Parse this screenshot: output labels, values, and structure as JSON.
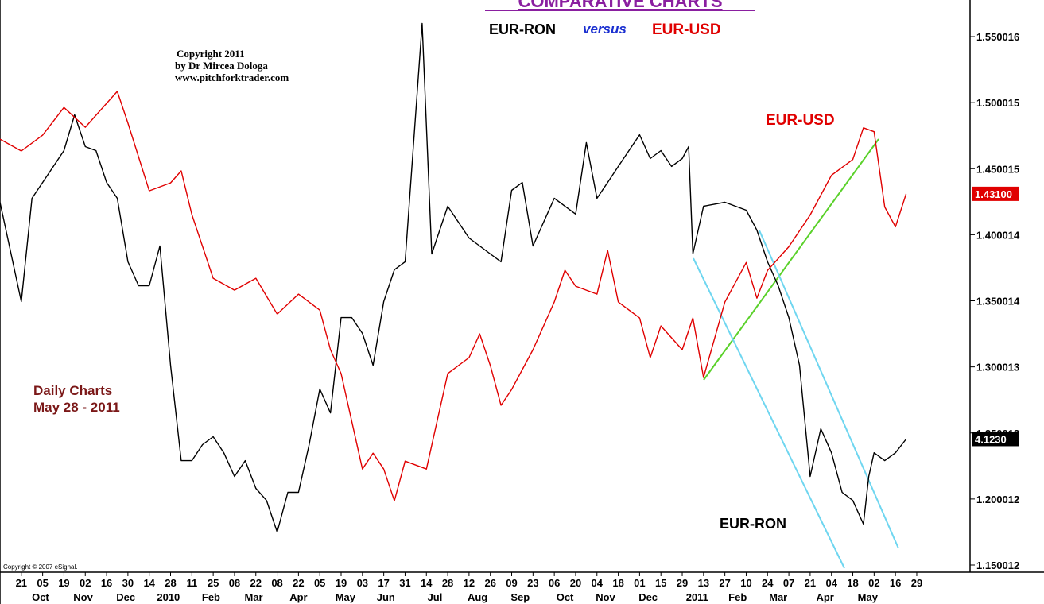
{
  "chart_data": {
    "type": "line",
    "title": "COMPARATIVE CHARTS",
    "subtitle": "versus",
    "copyright": [
      "Copyright 2011",
      "by Dr Mircea Dologa",
      "www.pitchforktrader.com"
    ],
    "note": [
      "Daily Charts",
      "May 28 - 2011"
    ],
    "source": "Copyright © 2007 eSignal.",
    "xlim": [
      -1,
      44.5
    ],
    "ylim": [
      1.1446,
      1.5777
    ],
    "y2lim": [
      4.049,
      4.367
    ],
    "yticks": [
      1.150012,
      1.200012,
      1.250013,
      1.300013,
      1.350014,
      1.400014,
      1.450015,
      1.500015,
      1.550016
    ],
    "xticks": [
      {
        "value": 0,
        "label": "21"
      },
      {
        "value": 1,
        "label": "05"
      },
      {
        "value": 2,
        "label": "19"
      },
      {
        "value": 3,
        "label": "02"
      },
      {
        "value": 4,
        "label": "16"
      },
      {
        "value": 5,
        "label": "30"
      },
      {
        "value": 6,
        "label": "14"
      },
      {
        "value": 7,
        "label": "28"
      },
      {
        "value": 8,
        "label": "11"
      },
      {
        "value": 9,
        "label": "25"
      },
      {
        "value": 10,
        "label": "08"
      },
      {
        "value": 11,
        "label": "22"
      },
      {
        "value": 12,
        "label": "08"
      },
      {
        "value": 13,
        "label": "22"
      },
      {
        "value": 14,
        "label": "05"
      },
      {
        "value": 15,
        "label": "19"
      },
      {
        "value": 16,
        "label": "03"
      },
      {
        "value": 17,
        "label": "17"
      },
      {
        "value": 18,
        "label": "31"
      },
      {
        "value": 19,
        "label": "14"
      },
      {
        "value": 20,
        "label": "28"
      },
      {
        "value": 21,
        "label": "12"
      },
      {
        "value": 22,
        "label": "26"
      },
      {
        "value": 23,
        "label": "09"
      },
      {
        "value": 24,
        "label": "23"
      },
      {
        "value": 25,
        "label": "06"
      },
      {
        "value": 26,
        "label": "20"
      },
      {
        "value": 27,
        "label": "04"
      },
      {
        "value": 28,
        "label": "18"
      },
      {
        "value": 29,
        "label": "01"
      },
      {
        "value": 30,
        "label": "15"
      },
      {
        "value": 31,
        "label": "29"
      },
      {
        "value": 32,
        "label": "13"
      },
      {
        "value": 33,
        "label": "27"
      },
      {
        "value": 34,
        "label": "10"
      },
      {
        "value": 35,
        "label": "24"
      },
      {
        "value": 36,
        "label": "07"
      },
      {
        "value": 37,
        "label": "21"
      },
      {
        "value": 38,
        "label": "04"
      },
      {
        "value": 39,
        "label": "18"
      },
      {
        "value": 40,
        "label": "02"
      },
      {
        "value": 41,
        "label": "16"
      },
      {
        "value": 42,
        "label": "29"
      }
    ],
    "month_labels": [
      {
        "value": 0.9,
        "label": "Oct"
      },
      {
        "value": 2.9,
        "label": "Nov"
      },
      {
        "value": 4.9,
        "label": "Dec"
      },
      {
        "value": 6.9,
        "label": "2010"
      },
      {
        "value": 8.9,
        "label": "Feb"
      },
      {
        "value": 10.9,
        "label": "Mar"
      },
      {
        "value": 13.0,
        "label": "Apr"
      },
      {
        "value": 15.2,
        "label": "May"
      },
      {
        "value": 17.1,
        "label": "Jun"
      },
      {
        "value": 19.4,
        "label": "Jul"
      },
      {
        "value": 21.4,
        "label": "Aug"
      },
      {
        "value": 23.4,
        "label": "Sep"
      },
      {
        "value": 25.5,
        "label": "Oct"
      },
      {
        "value": 27.4,
        "label": "Nov"
      },
      {
        "value": 29.4,
        "label": "Dec"
      },
      {
        "value": 31.7,
        "label": "2011"
      },
      {
        "value": 33.6,
        "label": "Feb"
      },
      {
        "value": 35.5,
        "label": "Mar"
      },
      {
        "value": 37.7,
        "label": "Apr"
      },
      {
        "value": 39.7,
        "label": "May"
      }
    ],
    "series": [
      {
        "name": "EUR-RON",
        "color": "#000000",
        "axis": "y2",
        "last_value_label": "4.1230",
        "x": [
          -1,
          0,
          0.5,
          1,
          2,
          2.5,
          3,
          3.5,
          4,
          4.5,
          5,
          5.5,
          6,
          6.5,
          7,
          7.5,
          8,
          8.5,
          9,
          9.5,
          10,
          10.5,
          11,
          11.5,
          12,
          12.5,
          13,
          13.5,
          14,
          14.5,
          15,
          15.5,
          16,
          16.5,
          17,
          17.5,
          18,
          18.8,
          19.25,
          20,
          21,
          22,
          22.5,
          23,
          23.5,
          24,
          25,
          26,
          26.5,
          27,
          27.5,
          28,
          28.5,
          29,
          29.5,
          30,
          30.5,
          31,
          31.3,
          31.5,
          32,
          33,
          34,
          34.5,
          35,
          35.5,
          36,
          36.5,
          37,
          37.5,
          38,
          38.5,
          39,
          39.5,
          39.75,
          40,
          40.5,
          41,
          41.5
        ],
        "values": [
          4.2546,
          4.1994,
          4.2568,
          4.2656,
          4.2833,
          4.3032,
          4.2855,
          4.2833,
          4.2656,
          4.2568,
          4.2215,
          4.2082,
          4.2082,
          4.2303,
          4.164,
          4.111,
          4.111,
          4.1199,
          4.1243,
          4.1154,
          4.1022,
          4.111,
          4.0956,
          4.0889,
          4.0713,
          4.0934,
          4.0934,
          4.1199,
          4.1508,
          4.1375,
          4.1905,
          4.1905,
          4.1817,
          4.164,
          4.1994,
          4.2171,
          4.2215,
          4.354,
          4.2259,
          4.2524,
          4.2347,
          4.2259,
          4.2215,
          4.2612,
          4.2656,
          4.2303,
          4.2568,
          4.248,
          4.2877,
          4.2568,
          4.2656,
          4.2745,
          4.2833,
          4.2921,
          4.2789,
          4.2833,
          4.2745,
          4.2789,
          4.2855,
          4.2259,
          4.2524,
          4.2546,
          4.2502,
          4.2391,
          4.2215,
          4.2082,
          4.1905,
          4.164,
          4.1022,
          4.1287,
          4.1154,
          4.0934,
          4.0889,
          4.0757,
          4.1022,
          4.1154,
          4.111,
          4.1154,
          4.123
        ]
      },
      {
        "name": "EUR-USD",
        "color": "#e00000",
        "last_value_label": "1.43100",
        "x": [
          -1,
          0,
          1,
          2,
          3,
          4,
          4.5,
          5,
          6,
          7,
          7.5,
          8,
          9,
          10,
          11,
          12,
          13,
          14,
          14.5,
          15,
          16,
          16.5,
          17,
          17.5,
          18,
          19,
          20,
          21,
          21.5,
          22,
          22.5,
          23,
          24,
          25,
          25.5,
          26,
          27,
          27.5,
          28,
          29,
          29.5,
          30,
          31,
          31.5,
          32,
          33,
          34,
          34.5,
          35,
          36,
          37,
          38,
          39,
          39.5,
          40,
          40.5,
          41,
          41.5
        ],
        "values": [
          1.4724,
          1.4634,
          1.4754,
          1.4964,
          1.4814,
          1.4995,
          1.5085,
          1.4845,
          1.4333,
          1.4393,
          1.4484,
          1.4153,
          1.3671,
          1.3581,
          1.3671,
          1.34,
          1.3551,
          1.343,
          1.313,
          1.2949,
          1.2227,
          1.2347,
          1.2227,
          1.1986,
          1.2287,
          1.2227,
          1.2949,
          1.307,
          1.325,
          1.301,
          1.2709,
          1.2829,
          1.313,
          1.3491,
          1.3732,
          1.3611,
          1.3551,
          1.3882,
          1.3491,
          1.337,
          1.307,
          1.331,
          1.313,
          1.337,
          1.292,
          1.349,
          1.379,
          1.352,
          1.373,
          1.391,
          1.415,
          1.445,
          1.457,
          1.481,
          1.478,
          1.421,
          1.406,
          1.431
        ]
      }
    ]
  }
}
